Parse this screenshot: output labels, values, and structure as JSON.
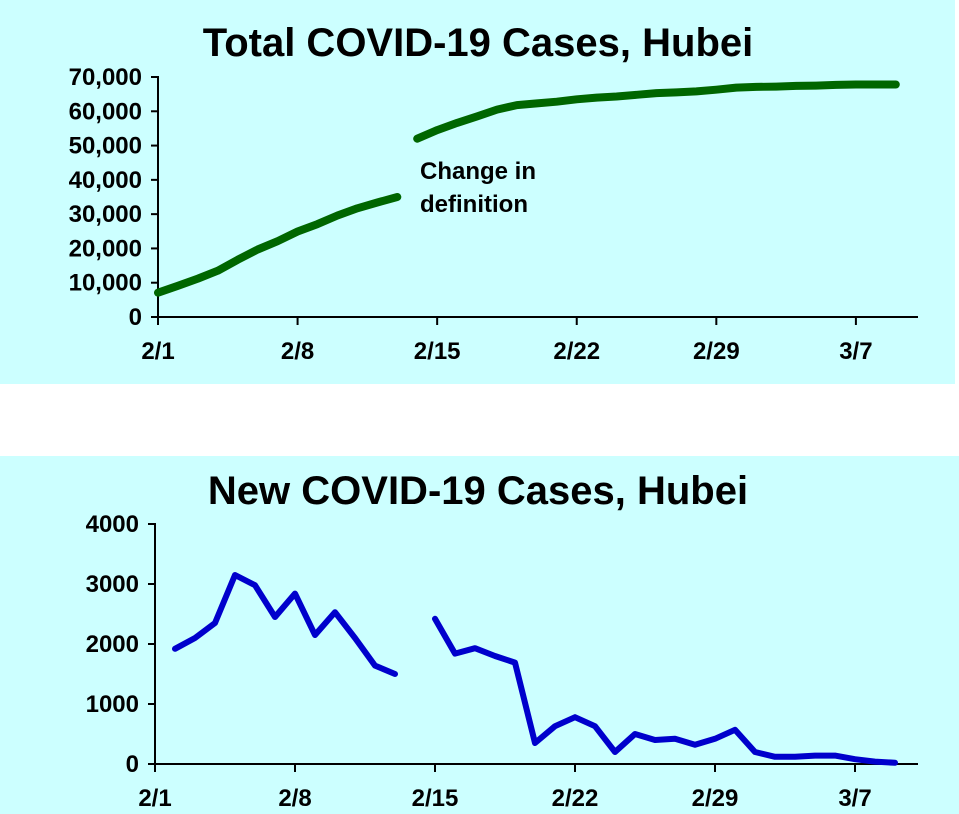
{
  "chart_data": [
    {
      "type": "line",
      "title": "Total COVID-19 Cases, Hubei",
      "xlabel": "",
      "ylabel": "",
      "x_ticks": [
        "2/1",
        "2/8",
        "2/15",
        "2/22",
        "2/29",
        "3/7"
      ],
      "y_ticks": [
        "0",
        "10,000",
        "20,000",
        "30,000",
        "40,000",
        "50,000",
        "60,000",
        "70,000"
      ],
      "ylim": [
        0,
        70000
      ],
      "grid": false,
      "color": "#006600",
      "annotation": {
        "text_line1": "Change in",
        "text_line2": "definition"
      },
      "segments": [
        {
          "x": [
            "2/1",
            "2/2",
            "2/3",
            "2/4",
            "2/5",
            "2/6",
            "2/7",
            "2/8",
            "2/9",
            "2/10",
            "2/11",
            "2/12",
            "2/13"
          ],
          "values": [
            7100,
            9100,
            11200,
            13500,
            16700,
            19700,
            22100,
            24950,
            27100,
            29600,
            31700,
            33400,
            35000
          ]
        },
        {
          "x": [
            "2/14",
            "2/15",
            "2/16",
            "2/17",
            "2/18",
            "2/19",
            "2/20",
            "2/21",
            "2/22",
            "2/23",
            "2/24",
            "2/25",
            "2/26",
            "2/27",
            "2/28",
            "2/29",
            "3/1",
            "3/2",
            "3/3",
            "3/4",
            "3/5",
            "3/6",
            "3/7",
            "3/8",
            "3/9"
          ],
          "values": [
            52000,
            54500,
            56600,
            58500,
            60500,
            61800,
            62300,
            62800,
            63500,
            64000,
            64300,
            64800,
            65300,
            65500,
            65800,
            66300,
            66900,
            67100,
            67200,
            67400,
            67500,
            67700,
            67800,
            67800,
            67800
          ]
        }
      ]
    },
    {
      "type": "line",
      "title": "New COVID-19 Cases, Hubei",
      "xlabel": "",
      "ylabel": "",
      "x_ticks": [
        "2/1",
        "2/8",
        "2/15",
        "2/22",
        "2/29",
        "3/7"
      ],
      "y_ticks": [
        "0",
        "1000",
        "2000",
        "3000",
        "4000"
      ],
      "ylim": [
        0,
        4000
      ],
      "grid": false,
      "color": "#0000cc",
      "segments": [
        {
          "x": [
            "2/2",
            "2/3",
            "2/4",
            "2/5",
            "2/6",
            "2/7",
            "2/8",
            "2/9",
            "2/10",
            "2/11",
            "2/12",
            "2/13"
          ],
          "values": [
            1920,
            2100,
            2350,
            3150,
            2980,
            2450,
            2840,
            2150,
            2530,
            2100,
            1640,
            1500
          ]
        },
        {
          "x": [
            "2/15",
            "2/16",
            "2/17",
            "2/18",
            "2/19",
            "2/20",
            "2/21",
            "2/22",
            "2/23",
            "2/24",
            "2/25",
            "2/26",
            "2/27",
            "2/28",
            "2/29",
            "3/1",
            "3/2",
            "3/3",
            "3/4",
            "3/5",
            "3/6",
            "3/7",
            "3/8",
            "3/9"
          ],
          "values": [
            2420,
            1840,
            1930,
            1800,
            1690,
            350,
            630,
            780,
            630,
            200,
            500,
            400,
            420,
            320,
            420,
            570,
            200,
            120,
            120,
            140,
            140,
            80,
            40,
            20
          ]
        }
      ]
    }
  ]
}
